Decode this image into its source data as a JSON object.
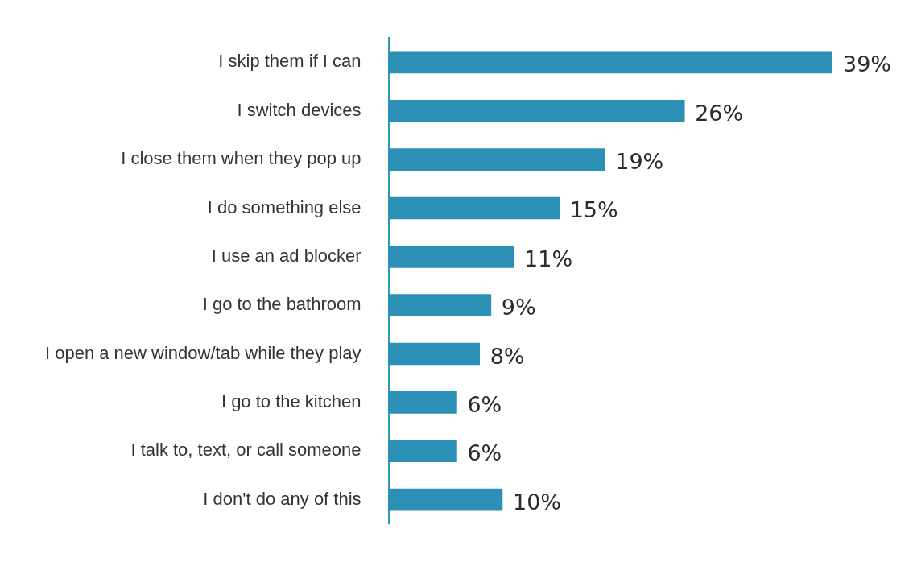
{
  "chart_data": {
    "type": "bar",
    "orientation": "horizontal",
    "categories": [
      "I skip them if I can",
      "I switch devices",
      "I close them when they pop up",
      "I do something else",
      "I use an ad blocker",
      "I go to the bathroom",
      "I open a new window/tab while they play",
      "I go to the kitchen",
      "I talk to, text, or call someone",
      "I don't do any of this"
    ],
    "values": [
      39,
      26,
      19,
      15,
      11,
      9,
      8,
      6,
      6,
      10
    ],
    "value_labels": [
      "39%",
      "26%",
      "19%",
      "15%",
      "11%",
      "9%",
      "8%",
      "6%",
      "6%",
      "10%"
    ],
    "color": "#2b8fb6"
  }
}
